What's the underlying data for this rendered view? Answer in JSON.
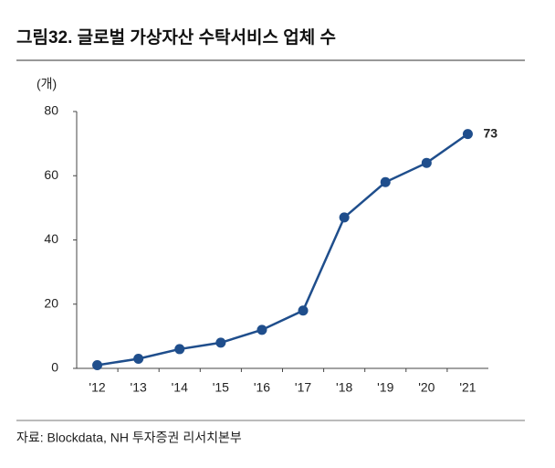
{
  "title": "그림32. 글로벌 가상자산 수탁서비스 업체 수",
  "source": "자료: Blockdata, NH 투자증권 리서치본부",
  "chart_data": {
    "type": "line",
    "y_unit": "(개)",
    "categories": [
      "'12",
      "'13",
      "'14",
      "'15",
      "'16",
      "'17",
      "'18",
      "'19",
      "'20",
      "'21"
    ],
    "values": [
      1,
      3,
      6,
      8,
      12,
      18,
      47,
      58,
      64,
      73
    ],
    "color": "#1f4e8c",
    "ylim": [
      0,
      80
    ],
    "yticks": [
      0,
      20,
      40,
      60,
      80
    ],
    "grid": false
  }
}
